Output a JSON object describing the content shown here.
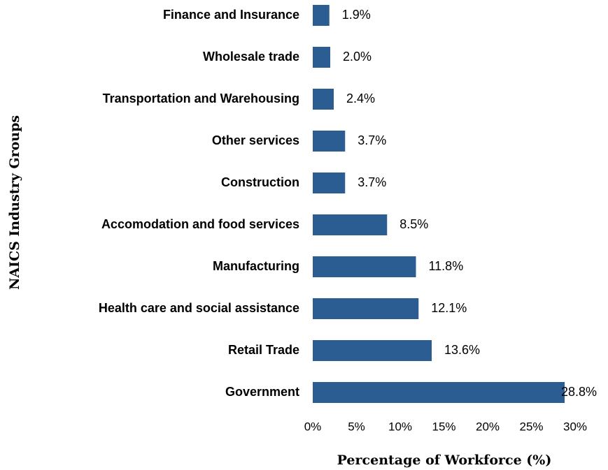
{
  "chart_data": {
    "type": "bar",
    "orientation": "horizontal",
    "xlabel": "Percentage of Workforce (%)",
    "ylabel": "NAICS Industry Groups",
    "categories": [
      "Finance and Insurance",
      "Wholesale trade",
      "Transportation and Warehousing",
      "Other services",
      "Construction",
      "Accomodation and food services",
      "Manufacturing",
      "Health care and social assistance",
      "Retail Trade",
      "Government"
    ],
    "values": [
      1.9,
      2.0,
      2.4,
      3.7,
      3.7,
      8.5,
      11.8,
      12.1,
      13.6,
      28.8
    ],
    "value_labels": [
      "1.9%",
      "2.0%",
      "2.4%",
      "3.7%",
      "3.7%",
      "8.5%",
      "11.8%",
      "12.1%",
      "13.6%",
      "28.8%"
    ],
    "color": "#2b5d93",
    "xlim": [
      0,
      30
    ],
    "xticks": [
      {
        "value": 0,
        "label": "0%"
      },
      {
        "value": 5,
        "label": "5%"
      },
      {
        "value": 10,
        "label": "10%"
      },
      {
        "value": 15,
        "label": "15%"
      },
      {
        "value": 20,
        "label": "20%"
      },
      {
        "value": 25,
        "label": "25%"
      },
      {
        "value": 30,
        "label": "30%"
      }
    ],
    "grid": false
  }
}
